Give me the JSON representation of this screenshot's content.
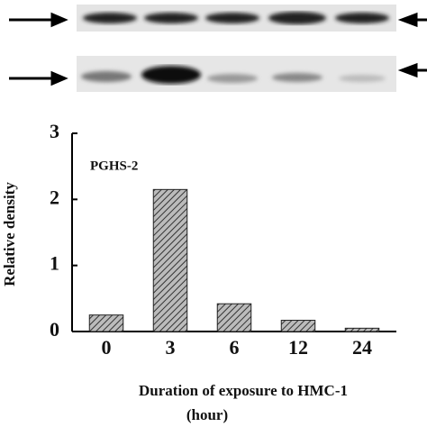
{
  "chart_data": {
    "type": "bar",
    "annotation": "PGHS-2",
    "ylabel": "Relative density",
    "xlabel": "Duration of exposure to HMC-1",
    "xlabel_unit": "(hour)",
    "categories": [
      "0",
      "3",
      "6",
      "12",
      "24"
    ],
    "values": [
      0.25,
      2.15,
      0.42,
      0.17,
      0.05
    ],
    "color": "#777777",
    "ylim": [
      0,
      3
    ],
    "yticks": [
      0,
      1,
      2,
      3
    ]
  }
}
